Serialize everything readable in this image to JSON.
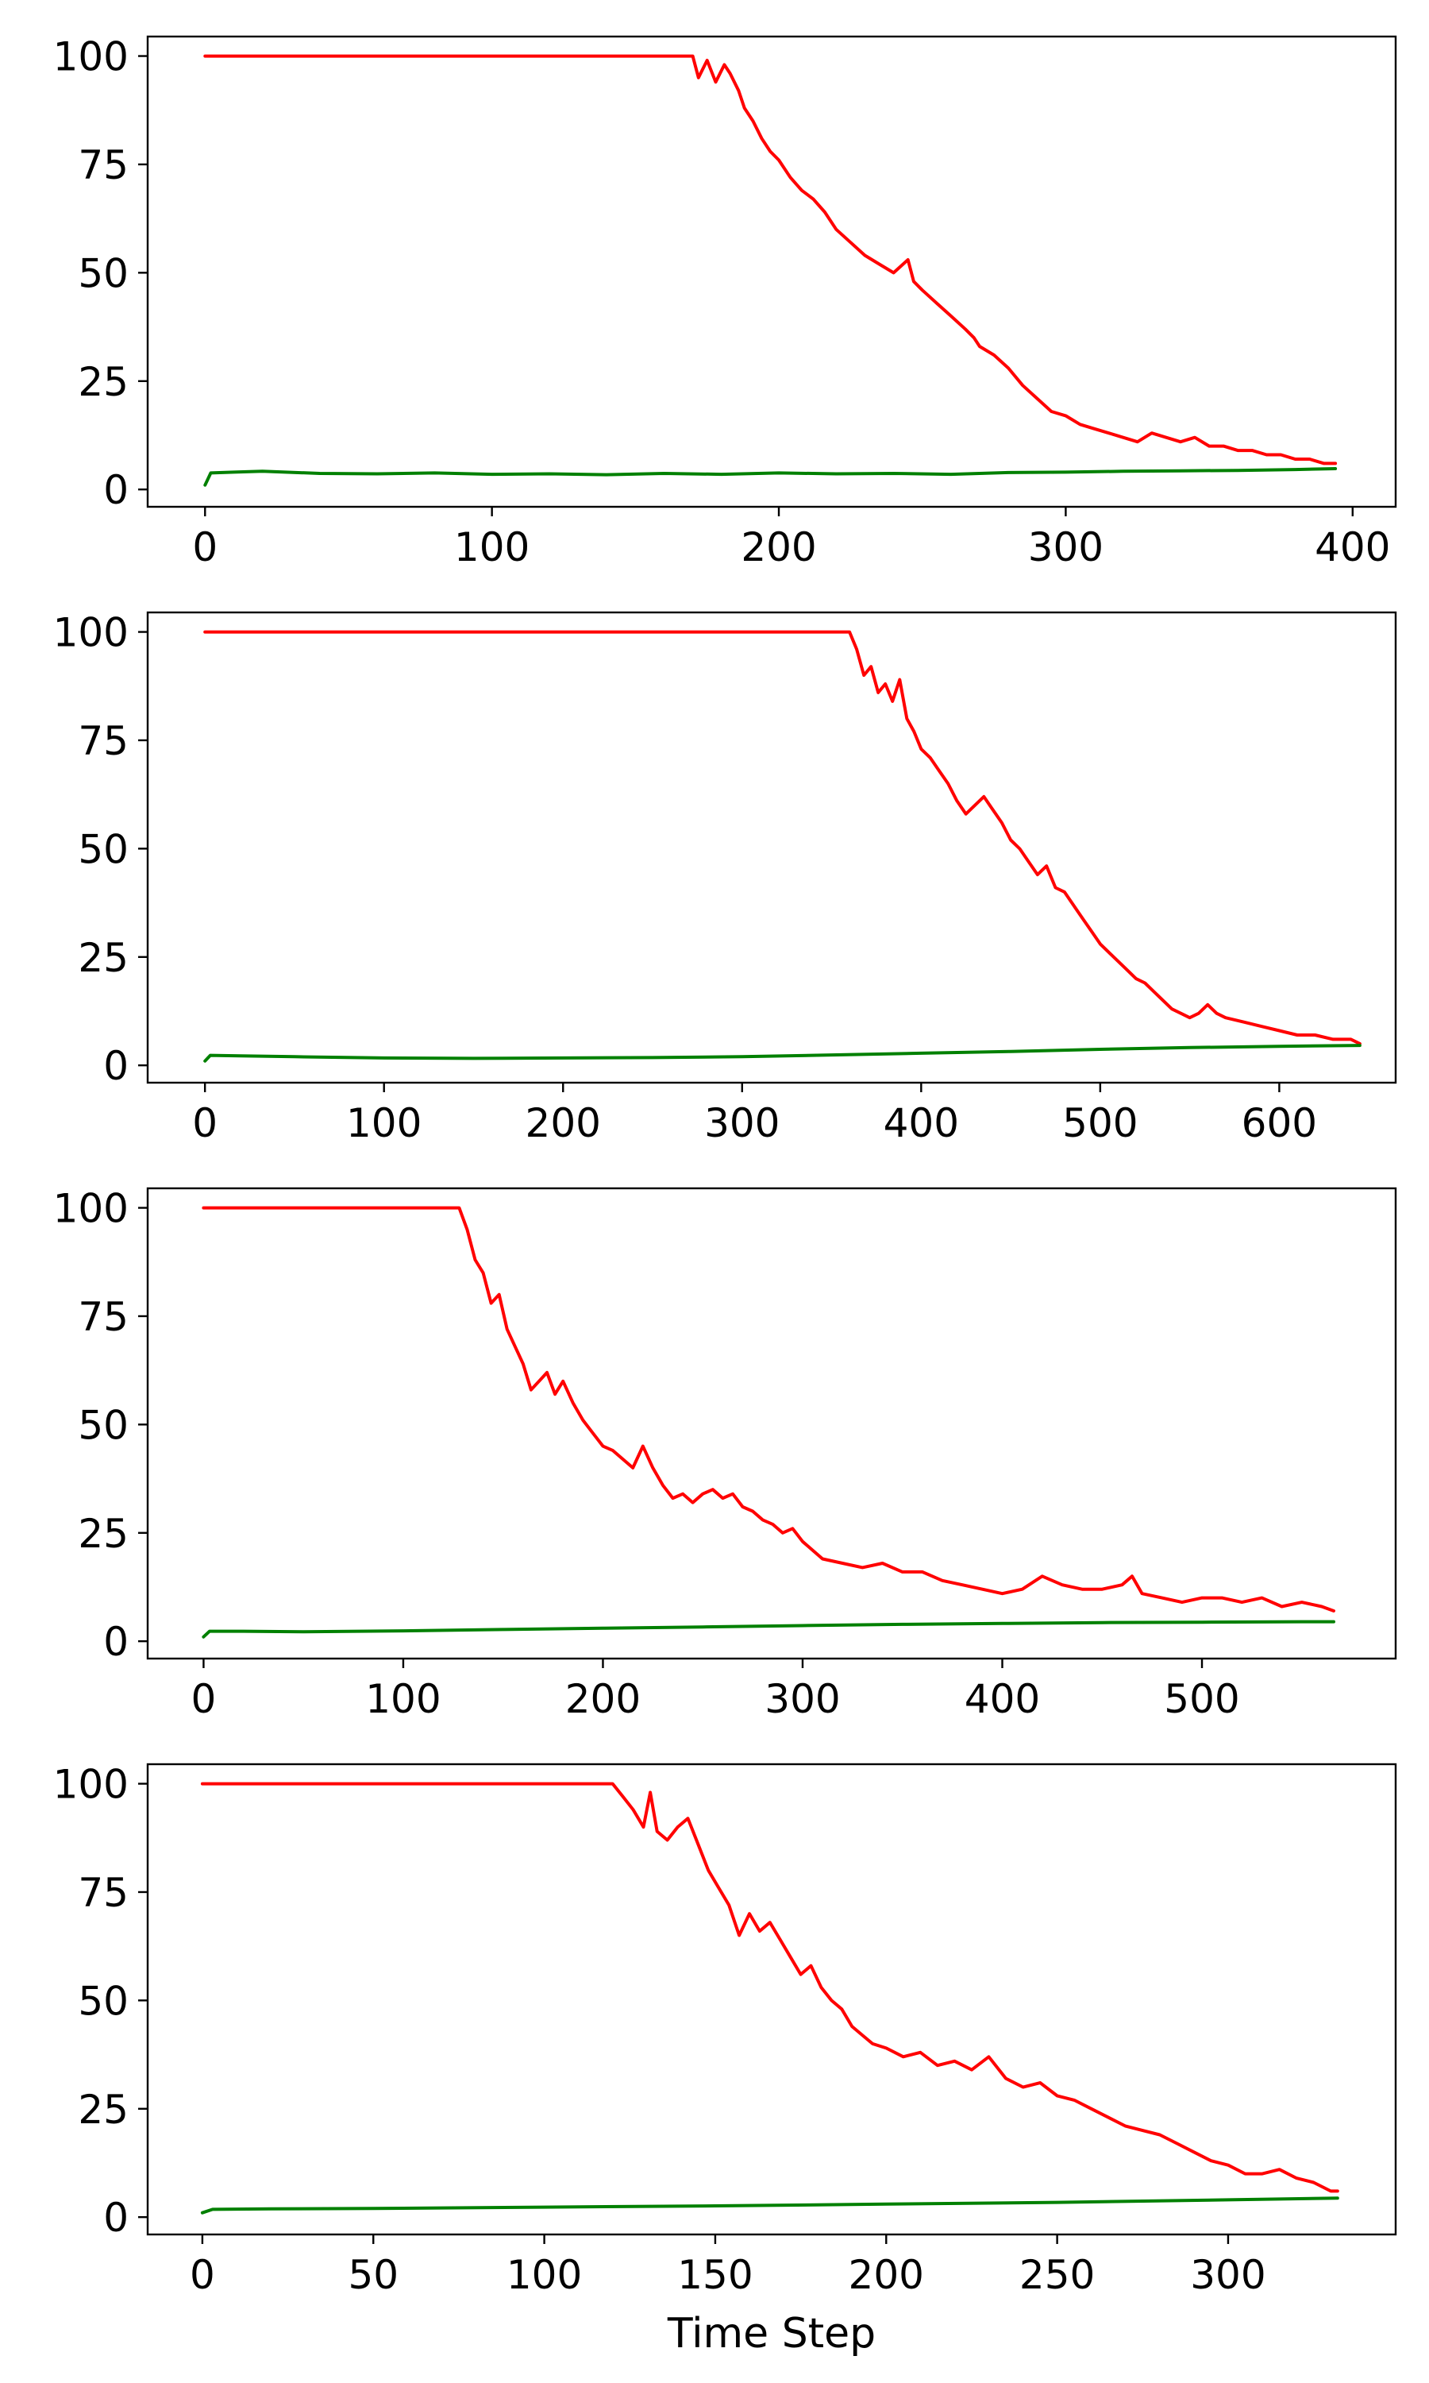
{
  "chart_data": [
    {
      "type": "line",
      "xlim": [
        -20,
        415
      ],
      "ylim": [
        -4,
        104.5
      ],
      "xticks": [
        0,
        100,
        200,
        300,
        400
      ],
      "yticks": [
        0,
        25,
        50,
        75,
        100
      ],
      "xlabel": "",
      "ylabel": "",
      "grid": false,
      "colors": {
        "red": "#ff0000",
        "green": "#008000"
      },
      "series": [
        {
          "color": "red",
          "x": [
            0,
            170,
            172,
            175,
            178,
            181,
            183,
            186,
            188,
            191,
            194,
            197,
            200,
            204,
            208,
            212,
            216,
            220,
            225,
            230,
            235,
            240,
            245,
            247,
            250,
            255,
            260,
            265,
            268,
            270,
            275,
            280,
            285,
            290,
            295,
            300,
            305,
            310,
            315,
            320,
            325,
            330,
            335,
            340,
            345,
            350,
            355,
            360,
            365,
            370,
            375,
            380,
            385,
            390,
            394
          ],
          "y": [
            100,
            100,
            95,
            99,
            94,
            98,
            96,
            92,
            88,
            85,
            81,
            78,
            76,
            72,
            69,
            67,
            64,
            60,
            57,
            54,
            52,
            50,
            53,
            48,
            46,
            43,
            40,
            37,
            35,
            33,
            31,
            28,
            24,
            21,
            18,
            17,
            15,
            14,
            13,
            12,
            11,
            13,
            12,
            11,
            12,
            10,
            10,
            9,
            9,
            8,
            8,
            7,
            7,
            6,
            6
          ]
        },
        {
          "color": "green",
          "x": [
            0,
            2,
            10,
            20,
            40,
            60,
            80,
            100,
            120,
            140,
            160,
            180,
            200,
            220,
            240,
            260,
            280,
            300,
            320,
            340,
            360,
            380,
            394
          ],
          "y": [
            1,
            3.8,
            4,
            4.2,
            3.7,
            3.6,
            3.8,
            3.5,
            3.6,
            3.4,
            3.7,
            3.5,
            3.8,
            3.6,
            3.7,
            3.5,
            3.9,
            4,
            4.2,
            4.3,
            4.4,
            4.6,
            4.8
          ]
        }
      ]
    },
    {
      "type": "line",
      "xlim": [
        -32,
        665
      ],
      "ylim": [
        -4,
        104.5
      ],
      "xticks": [
        0,
        100,
        200,
        300,
        400,
        500,
        600
      ],
      "yticks": [
        0,
        25,
        50,
        75,
        100
      ],
      "xlabel": "",
      "ylabel": "",
      "grid": false,
      "colors": {
        "red": "#ff0000",
        "green": "#008000"
      },
      "series": [
        {
          "color": "red",
          "x": [
            0,
            360,
            364,
            368,
            372,
            376,
            380,
            384,
            388,
            392,
            396,
            400,
            405,
            410,
            415,
            420,
            425,
            430,
            435,
            440,
            445,
            450,
            455,
            460,
            465,
            470,
            475,
            480,
            485,
            490,
            495,
            500,
            505,
            510,
            515,
            520,
            525,
            530,
            535,
            540,
            545,
            550,
            555,
            560,
            565,
            570,
            580,
            590,
            600,
            610,
            620,
            630,
            640,
            645
          ],
          "y": [
            100,
            100,
            96,
            90,
            92,
            86,
            88,
            84,
            89,
            80,
            77,
            73,
            71,
            68,
            65,
            61,
            58,
            60,
            62,
            59,
            56,
            52,
            50,
            47,
            44,
            46,
            41,
            40,
            37,
            34,
            31,
            28,
            26,
            24,
            22,
            20,
            19,
            17,
            15,
            13,
            12,
            11,
            12,
            14,
            12,
            11,
            10,
            9,
            8,
            7,
            7,
            6,
            6,
            5
          ]
        },
        {
          "color": "green",
          "x": [
            0,
            3,
            20,
            50,
            100,
            150,
            200,
            250,
            300,
            350,
            400,
            450,
            500,
            550,
            600,
            645
          ],
          "y": [
            1,
            2.3,
            2.2,
            2,
            1.7,
            1.6,
            1.7,
            1.8,
            2,
            2.4,
            2.8,
            3.2,
            3.7,
            4.1,
            4.4,
            4.6
          ]
        }
      ]
    },
    {
      "type": "line",
      "xlim": [
        -28,
        597
      ],
      "ylim": [
        -4,
        104.5
      ],
      "xticks": [
        0,
        100,
        200,
        300,
        400,
        500
      ],
      "yticks": [
        0,
        25,
        50,
        75,
        100
      ],
      "xlabel": "",
      "ylabel": "",
      "grid": false,
      "colors": {
        "red": "#ff0000",
        "green": "#008000"
      },
      "series": [
        {
          "color": "red",
          "x": [
            0,
            128,
            132,
            136,
            140,
            144,
            148,
            152,
            156,
            160,
            164,
            168,
            172,
            176,
            180,
            185,
            190,
            195,
            200,
            205,
            210,
            215,
            220,
            225,
            230,
            235,
            240,
            245,
            250,
            255,
            260,
            265,
            270,
            275,
            280,
            285,
            290,
            295,
            300,
            305,
            310,
            320,
            330,
            340,
            350,
            360,
            370,
            380,
            390,
            400,
            410,
            420,
            430,
            440,
            450,
            460,
            465,
            470,
            480,
            490,
            500,
            510,
            520,
            530,
            540,
            550,
            560,
            566
          ],
          "y": [
            100,
            100,
            95,
            88,
            85,
            78,
            80,
            72,
            68,
            64,
            58,
            60,
            62,
            57,
            60,
            55,
            51,
            48,
            45,
            44,
            42,
            40,
            45,
            40,
            36,
            33,
            34,
            32,
            34,
            35,
            33,
            34,
            31,
            30,
            28,
            27,
            25,
            26,
            23,
            21,
            19,
            18,
            17,
            18,
            16,
            16,
            14,
            13,
            12,
            11,
            12,
            15,
            13,
            12,
            12,
            13,
            15,
            11,
            10,
            9,
            10,
            10,
            9,
            10,
            8,
            9,
            8,
            7
          ]
        },
        {
          "color": "green",
          "x": [
            0,
            3,
            20,
            50,
            100,
            150,
            200,
            250,
            300,
            350,
            400,
            450,
            500,
            550,
            566
          ],
          "y": [
            1,
            2.3,
            2.3,
            2.2,
            2.4,
            2.7,
            3,
            3.3,
            3.6,
            3.9,
            4.1,
            4.3,
            4.4,
            4.5,
            4.5
          ]
        }
      ]
    },
    {
      "type": "line",
      "xlim": [
        -16,
        349
      ],
      "ylim": [
        -4,
        104.5
      ],
      "xticks": [
        0,
        50,
        100,
        150,
        200,
        250,
        300
      ],
      "yticks": [
        0,
        25,
        50,
        75,
        100
      ],
      "xlabel": "Time Step",
      "ylabel": "",
      "grid": false,
      "colors": {
        "red": "#ff0000",
        "green": "#008000"
      },
      "series": [
        {
          "color": "red",
          "x": [
            0,
            120,
            123,
            126,
            129,
            131,
            133,
            136,
            139,
            142,
            145,
            148,
            151,
            154,
            157,
            160,
            163,
            166,
            169,
            172,
            175,
            178,
            181,
            184,
            187,
            190,
            193,
            196,
            200,
            205,
            210,
            215,
            220,
            225,
            230,
            235,
            240,
            245,
            250,
            255,
            260,
            265,
            270,
            275,
            280,
            285,
            290,
            295,
            300,
            305,
            310,
            315,
            320,
            325,
            330,
            332
          ],
          "y": [
            100,
            100,
            97,
            94,
            90,
            98,
            89,
            87,
            90,
            92,
            86,
            80,
            76,
            72,
            65,
            70,
            66,
            68,
            64,
            60,
            56,
            58,
            53,
            50,
            48,
            44,
            42,
            40,
            39,
            37,
            38,
            35,
            36,
            34,
            37,
            32,
            30,
            31,
            28,
            27,
            25,
            23,
            21,
            20,
            19,
            17,
            15,
            13,
            12,
            10,
            10,
            11,
            9,
            8,
            6,
            6
          ]
        },
        {
          "color": "green",
          "x": [
            0,
            3,
            20,
            50,
            100,
            150,
            200,
            250,
            300,
            332
          ],
          "y": [
            1,
            1.8,
            1.9,
            2,
            2.3,
            2.6,
            3,
            3.4,
            4,
            4.4
          ]
        }
      ]
    }
  ]
}
